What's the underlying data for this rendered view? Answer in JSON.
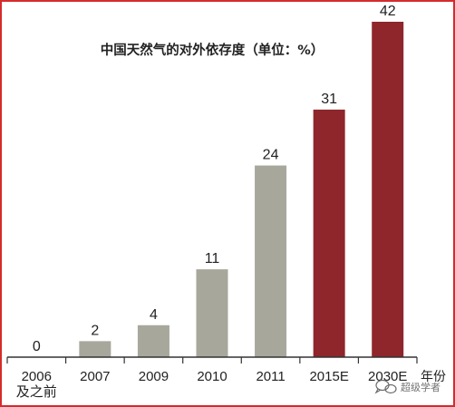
{
  "chart_data": {
    "type": "bar",
    "title": "中国天然气的对外依存度（单位：%）",
    "xlabel": "年份",
    "ylabel": "",
    "categories": [
      "2006\n及之前",
      "2007",
      "2009",
      "2010",
      "2011",
      "2015E",
      "2030E"
    ],
    "values": [
      0,
      2,
      4,
      11,
      24,
      31,
      42
    ],
    "bar_colors": [
      "#a7a79c",
      "#a7a79c",
      "#a7a79c",
      "#a7a79c",
      "#a7a79c",
      "#8e262c",
      "#8e262c"
    ],
    "ylim": [
      0,
      42
    ],
    "grid": false,
    "legend": "none"
  },
  "watermark": {
    "text": "超级学者"
  },
  "colors": {
    "frame": "#d52b2b",
    "actual_bar": "#a7a79c",
    "estimate_bar": "#8e262c",
    "axis": "#333333",
    "text": "#222222"
  }
}
